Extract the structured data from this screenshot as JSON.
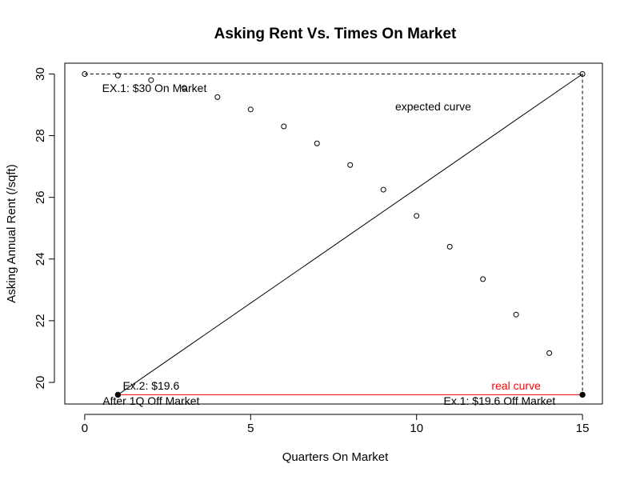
{
  "chart_data": {
    "type": "scatter",
    "title": "Asking Rent Vs. Times On Market",
    "xlabel": "Quarters On Market",
    "ylabel": "Asking Annual Rent (/sqft)",
    "xlim": [
      -0.6,
      15.6
    ],
    "ylim": [
      19.3,
      30.35
    ],
    "x_ticks": [
      0,
      5,
      10,
      15
    ],
    "y_ticks": [
      20,
      22,
      24,
      26,
      28,
      30
    ],
    "grid": false,
    "legend": "none",
    "series": [
      {
        "marker": "open-circle",
        "points": [
          {
            "x": 0,
            "y": 30.0
          },
          {
            "x": 1,
            "y": 29.95
          },
          {
            "x": 2,
            "y": 29.8
          },
          {
            "x": 3,
            "y": 29.55
          },
          {
            "x": 4,
            "y": 29.25
          },
          {
            "x": 5,
            "y": 28.85
          },
          {
            "x": 6,
            "y": 28.3
          },
          {
            "x": 7,
            "y": 27.75
          },
          {
            "x": 8,
            "y": 27.05
          },
          {
            "x": 9,
            "y": 26.25
          },
          {
            "x": 10,
            "y": 25.4
          },
          {
            "x": 11,
            "y": 24.4
          },
          {
            "x": 12,
            "y": 23.35
          },
          {
            "x": 13,
            "y": 22.2
          },
          {
            "x": 14,
            "y": 20.95
          },
          {
            "x": 15,
            "y": 30.0
          }
        ]
      },
      {
        "marker": "filled-circle",
        "points": [
          {
            "x": 1,
            "y": 19.6
          },
          {
            "x": 15,
            "y": 19.6
          }
        ]
      }
    ],
    "lines": [
      {
        "style": "solid",
        "color": "#000000",
        "from": {
          "x": 1,
          "y": 19.6
        },
        "to": {
          "x": 15,
          "y": 30.0
        }
      },
      {
        "style": "solid",
        "color": "#ff0000",
        "from": {
          "x": 1,
          "y": 19.6
        },
        "to": {
          "x": 15,
          "y": 19.6
        }
      },
      {
        "style": "dashed",
        "color": "#000000",
        "from": {
          "x": 0,
          "y": 30.0
        },
        "to": {
          "x": 15,
          "y": 30.0
        }
      },
      {
        "style": "dashed",
        "color": "#000000",
        "from": {
          "x": 15,
          "y": 30.0
        },
        "to": {
          "x": 15,
          "y": 19.6
        }
      }
    ],
    "annotations": [
      {
        "text": "EX.1: $30 On Market",
        "x": 2.1,
        "y": 29.55,
        "color": "#000000"
      },
      {
        "text": "expected curve",
        "x": 10.5,
        "y": 28.95,
        "color": "#000000"
      },
      {
        "text": "Ex.2: $19.6",
        "x": 2.0,
        "y": 19.9,
        "color": "#000000"
      },
      {
        "text": "After 1Q Off Market",
        "x": 2.0,
        "y": 19.4,
        "color": "#000000"
      },
      {
        "text": "real curve",
        "x": 13.0,
        "y": 19.9,
        "color": "#ff0000"
      },
      {
        "text": "Ex.1: $19.6 Off Market",
        "x": 12.5,
        "y": 19.4,
        "color": "#000000"
      }
    ]
  }
}
